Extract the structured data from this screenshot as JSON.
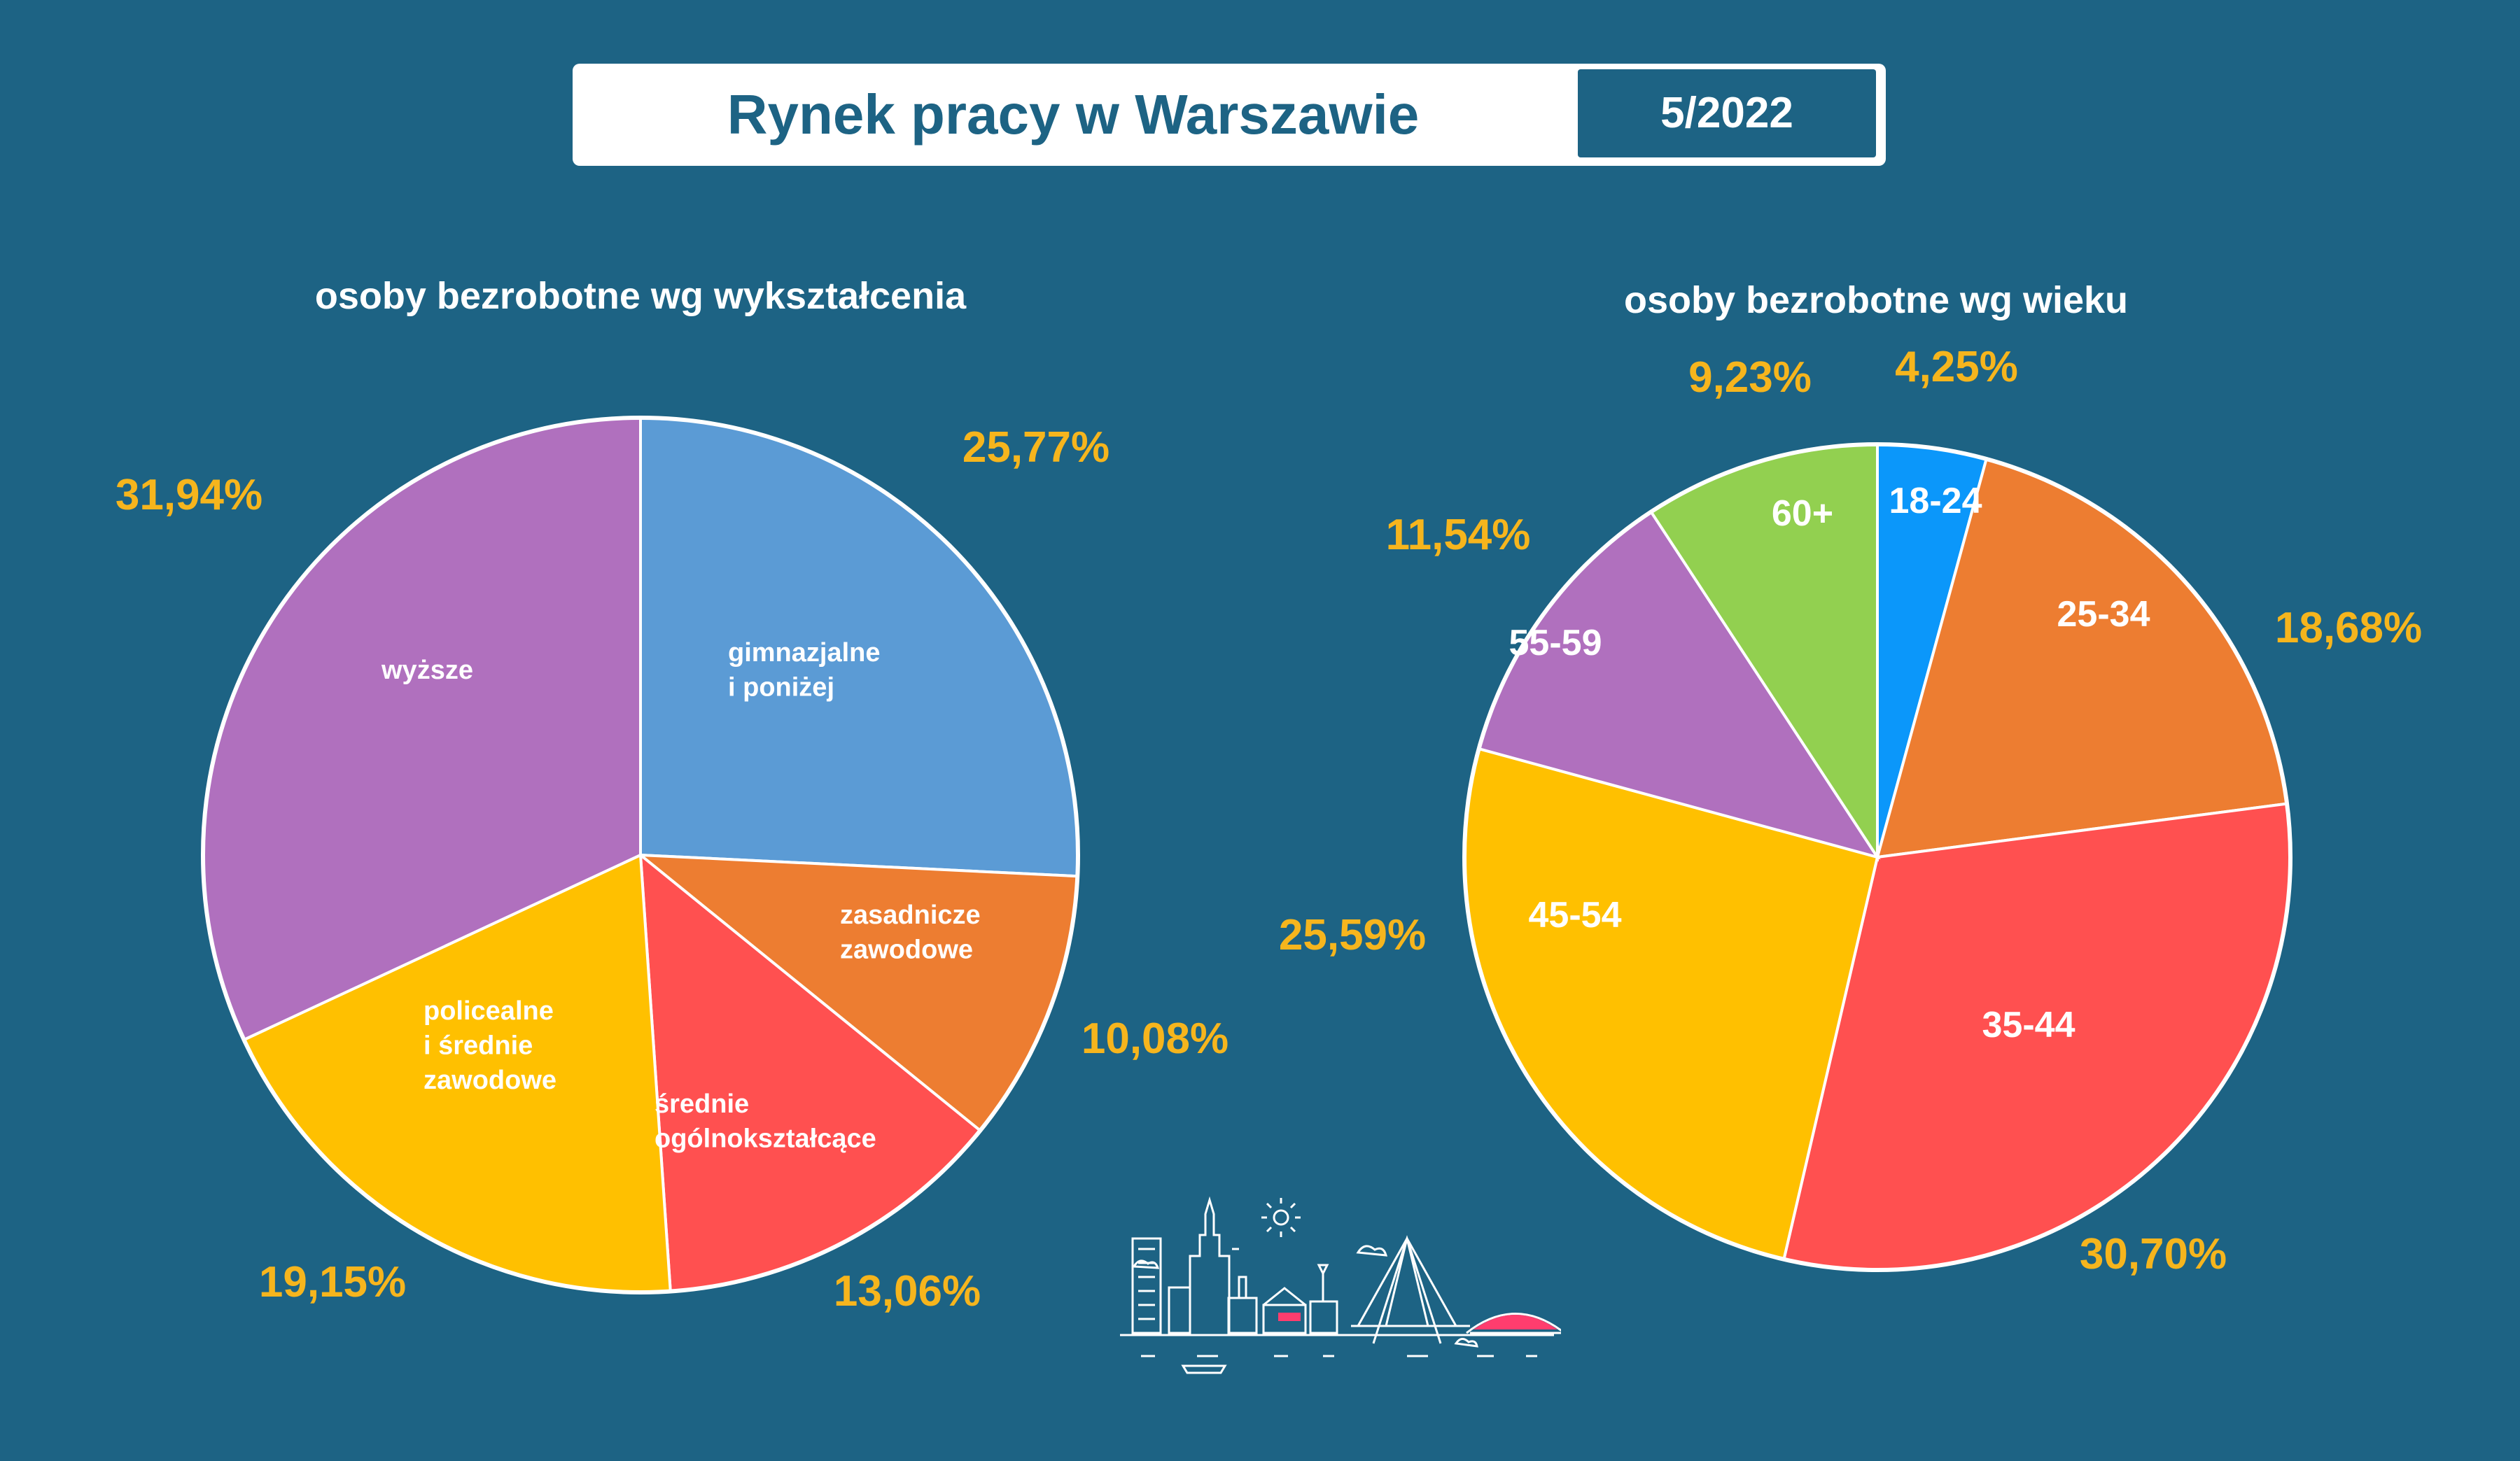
{
  "header": {
    "title": "Rynek pracy w Warszawie",
    "date": "5/2022"
  },
  "colors": {
    "background": "#1d6384",
    "pct_label": "#f6b51d",
    "slice_label": "#ffffff"
  },
  "chart_data": [
    {
      "type": "pie",
      "title": "osoby bezrobotne wg wykształcenia",
      "slices": [
        {
          "label": [
            "gimnazjalne",
            "i poniżej"
          ],
          "value": 25.77,
          "value_label": "25,77%",
          "color": "#5b9bd5"
        },
        {
          "label": [
            "zasadnicze",
            "zawodowe"
          ],
          "value": 10.08,
          "value_label": "10,08%",
          "color": "#ed7d31"
        },
        {
          "label": [
            "średnie",
            "ogólnokształcące"
          ],
          "value": 13.06,
          "value_label": "13,06%",
          "color": "#ff5050"
        },
        {
          "label": [
            "policealne",
            "i średnie",
            "zawodowe"
          ],
          "value": 19.15,
          "value_label": "19,15%",
          "color": "#ffc000"
        },
        {
          "label": [
            "wyższe"
          ],
          "value": 31.94,
          "value_label": "31,94%",
          "color": "#b070be"
        }
      ]
    },
    {
      "type": "pie",
      "title": "osoby bezrobotne wg wieku",
      "slices": [
        {
          "label": [
            "18-24"
          ],
          "value": 4.25,
          "value_label": "4,25%",
          "color": "#0b97fa"
        },
        {
          "label": [
            "25-34"
          ],
          "value": 18.68,
          "value_label": "18,68%",
          "color": "#ed7d31"
        },
        {
          "label": [
            "35-44"
          ],
          "value": 30.7,
          "value_label": "30,70%",
          "color": "#ff5050"
        },
        {
          "label": [
            "45-54"
          ],
          "value": 25.59,
          "value_label": "25,59%",
          "color": "#ffc000"
        },
        {
          "label": [
            "55-59"
          ],
          "value": 11.54,
          "value_label": "11,54%",
          "color": "#b070be"
        },
        {
          "label": [
            "60+"
          ],
          "value": 9.23,
          "value_label": "9,23%",
          "color": "#92d050"
        }
      ]
    }
  ]
}
